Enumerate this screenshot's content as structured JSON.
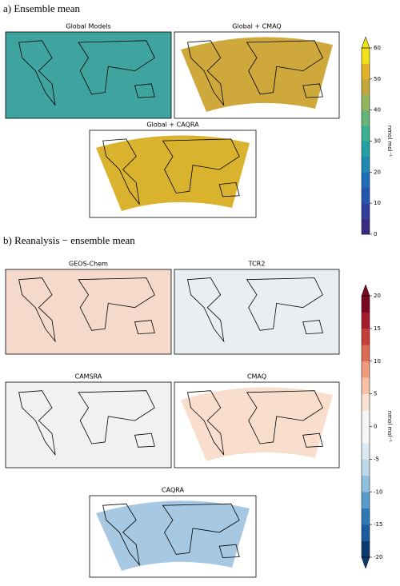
{
  "section_a": {
    "title": "a) Ensemble mean",
    "panels": [
      {
        "title": "Global Models",
        "color": "#3fa3a0"
      },
      {
        "title": "Global + CMAQ",
        "color": "#cfa83c"
      },
      {
        "title": "Global + CAQRA",
        "color": "#d9b22e"
      }
    ],
    "colorbar": {
      "label": "nmol mol⁻¹",
      "lim": [
        0,
        60
      ],
      "ticks": [
        0,
        10,
        20,
        30,
        40,
        50,
        60
      ],
      "colors": [
        "#3b2a84",
        "#2f3f9a",
        "#2456b0",
        "#1e6fb8",
        "#1f88b0",
        "#23a0a3",
        "#3bb08e",
        "#66b479",
        "#93b35c",
        "#c2a83c",
        "#e3b22a",
        "#f2e21c"
      ],
      "extend": "max"
    }
  },
  "section_b": {
    "title": "b) Reanalysis − ensemble mean",
    "panels": [
      {
        "title": "GEOS-Chem",
        "color": "#f5d9ca"
      },
      {
        "title": "TCR2",
        "color": "#e9eef3"
      },
      {
        "title": "CAMSRA",
        "color": "#f3f1ef"
      },
      {
        "title": "CMAQ",
        "color": "#f9decd"
      },
      {
        "title": "CAQRA",
        "color": "#a6c8e2"
      }
    ],
    "colorbar": {
      "label": "nmol mol⁻¹",
      "lim": [
        -20,
        20
      ],
      "ticks": [
        -20,
        -15,
        -10,
        -5,
        0,
        5,
        10,
        15,
        20
      ],
      "colors": [
        "#0b3a70",
        "#1c5c9e",
        "#2f79b5",
        "#5a9ccb",
        "#8fbfdc",
        "#bcd8ea",
        "#dce9f2",
        "#f5f5f5",
        "#f5f5f5",
        "#fbe1d3",
        "#f8c1a6",
        "#ee9c7c",
        "#dc6b53",
        "#c53e3a",
        "#a51a2d",
        "#7a0822"
      ],
      "extend": "both"
    }
  }
}
